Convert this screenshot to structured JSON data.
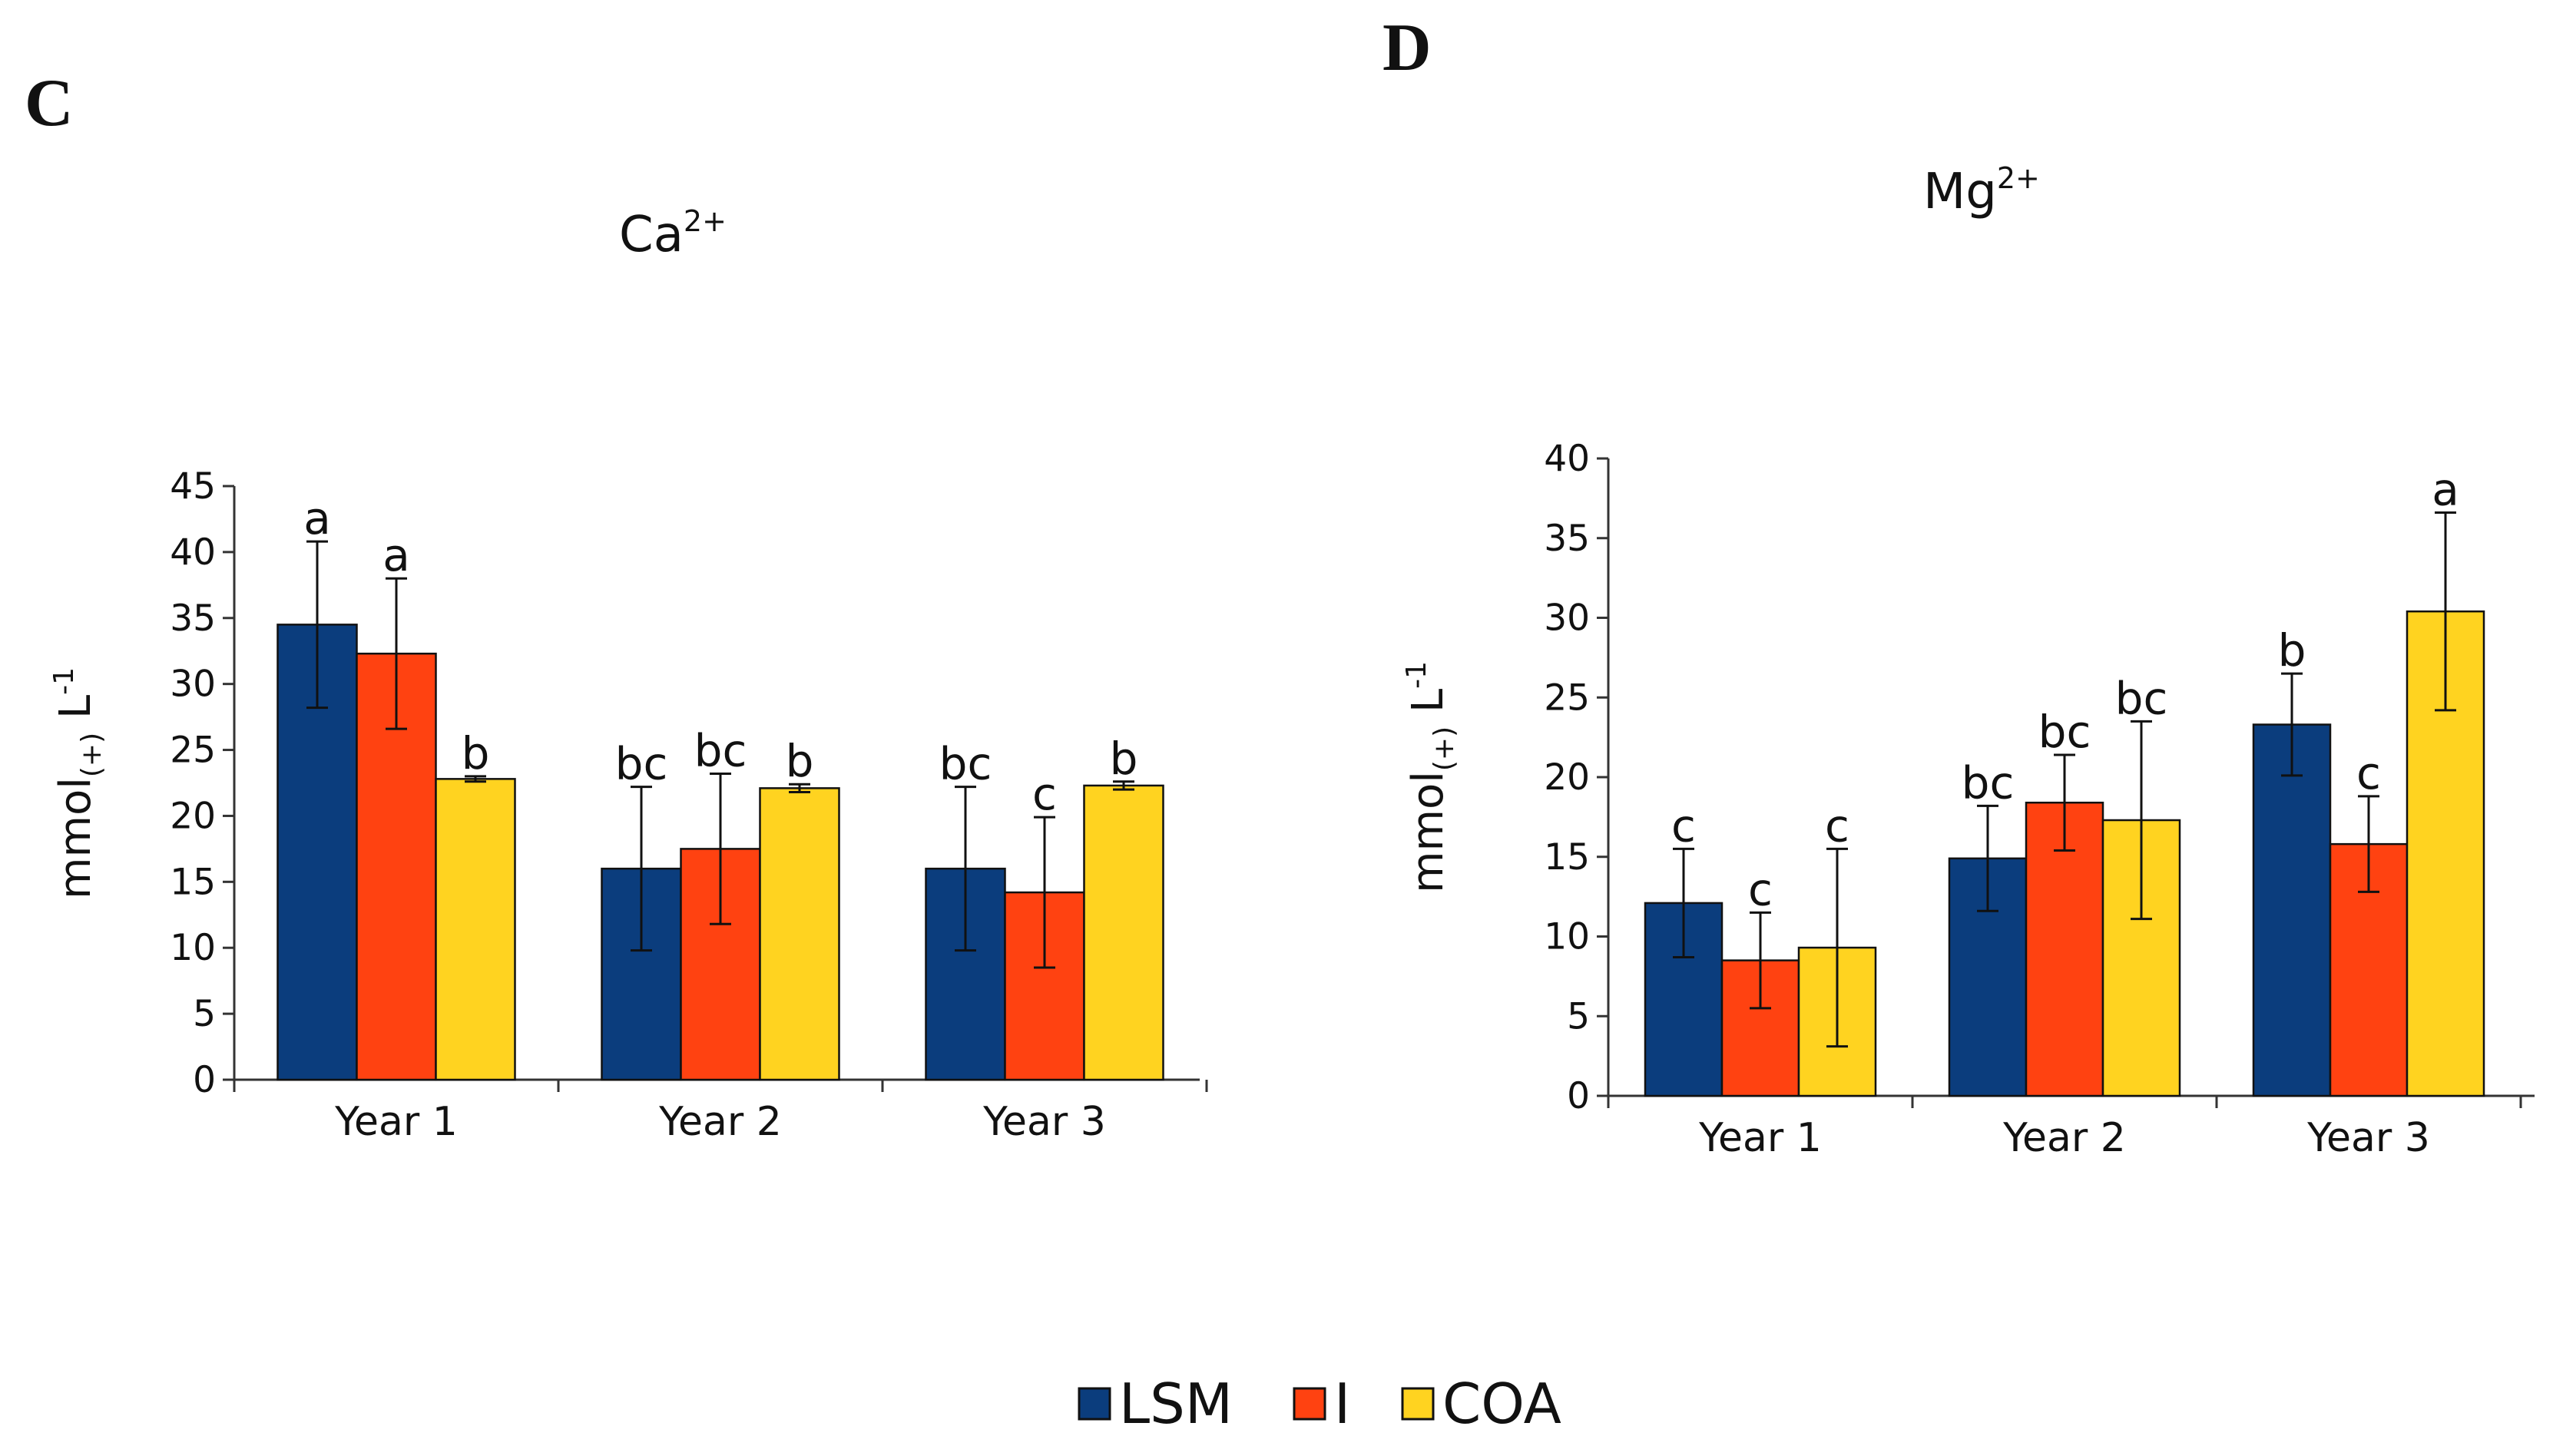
{
  "series_meta": [
    {
      "name": "LSM",
      "color": "#0b3d7d"
    },
    {
      "name": "I",
      "color": "#ff4211"
    },
    {
      "name": "COA",
      "color": "#ffd320"
    }
  ],
  "chart_data": [
    {
      "type": "bar",
      "panel": "C",
      "title": "Ca",
      "title_sup": "2+",
      "ylabel": "mmol",
      "ylabel_sub": "(+)",
      "ylabel_unit": "L",
      "ylabel_unit_sup": "-1",
      "categories": [
        "Year 1",
        "Year 2",
        "Year 3"
      ],
      "ylim": [
        0,
        45
      ],
      "ticks": [
        0,
        5,
        10,
        15,
        20,
        25,
        30,
        35,
        40,
        45
      ],
      "series": [
        {
          "name": "LSM",
          "values": [
            34.5,
            16.0,
            16.0
          ],
          "errors": [
            6.3,
            6.2,
            6.2
          ],
          "letters": [
            "a",
            "bc",
            "bc"
          ]
        },
        {
          "name": "I",
          "values": [
            32.3,
            17.5,
            14.2
          ],
          "errors": [
            5.7,
            5.7,
            5.7
          ],
          "letters": [
            "a",
            "bc",
            "c"
          ]
        },
        {
          "name": "COA",
          "values": [
            22.8,
            22.1,
            22.3
          ],
          "errors": [
            0.2,
            0.3,
            0.3
          ],
          "letters": [
            "b",
            "b",
            "b"
          ]
        }
      ]
    },
    {
      "type": "bar",
      "panel": "D",
      "title": "Mg",
      "title_sup": "2+",
      "ylabel": "mmol",
      "ylabel_sub": "(+)",
      "ylabel_unit": "L",
      "ylabel_unit_sup": "-1",
      "categories": [
        "Year 1",
        "Year 2",
        "Year 3"
      ],
      "ylim": [
        0,
        40
      ],
      "ticks": [
        0,
        5,
        10,
        15,
        20,
        25,
        30,
        35,
        40
      ],
      "series": [
        {
          "name": "LSM",
          "values": [
            12.1,
            14.9,
            23.3
          ],
          "errors": [
            3.4,
            3.3,
            3.2
          ],
          "letters": [
            "c",
            "bc",
            "b"
          ]
        },
        {
          "name": "I",
          "values": [
            8.5,
            18.4,
            15.8
          ],
          "errors": [
            3.0,
            3.0,
            3.0
          ],
          "letters": [
            "c",
            "bc",
            "c"
          ]
        },
        {
          "name": "COA",
          "values": [
            9.3,
            17.3,
            30.4
          ],
          "errors": [
            6.2,
            6.2,
            6.2
          ],
          "letters": [
            "c",
            "bc",
            "a"
          ]
        }
      ]
    }
  ]
}
